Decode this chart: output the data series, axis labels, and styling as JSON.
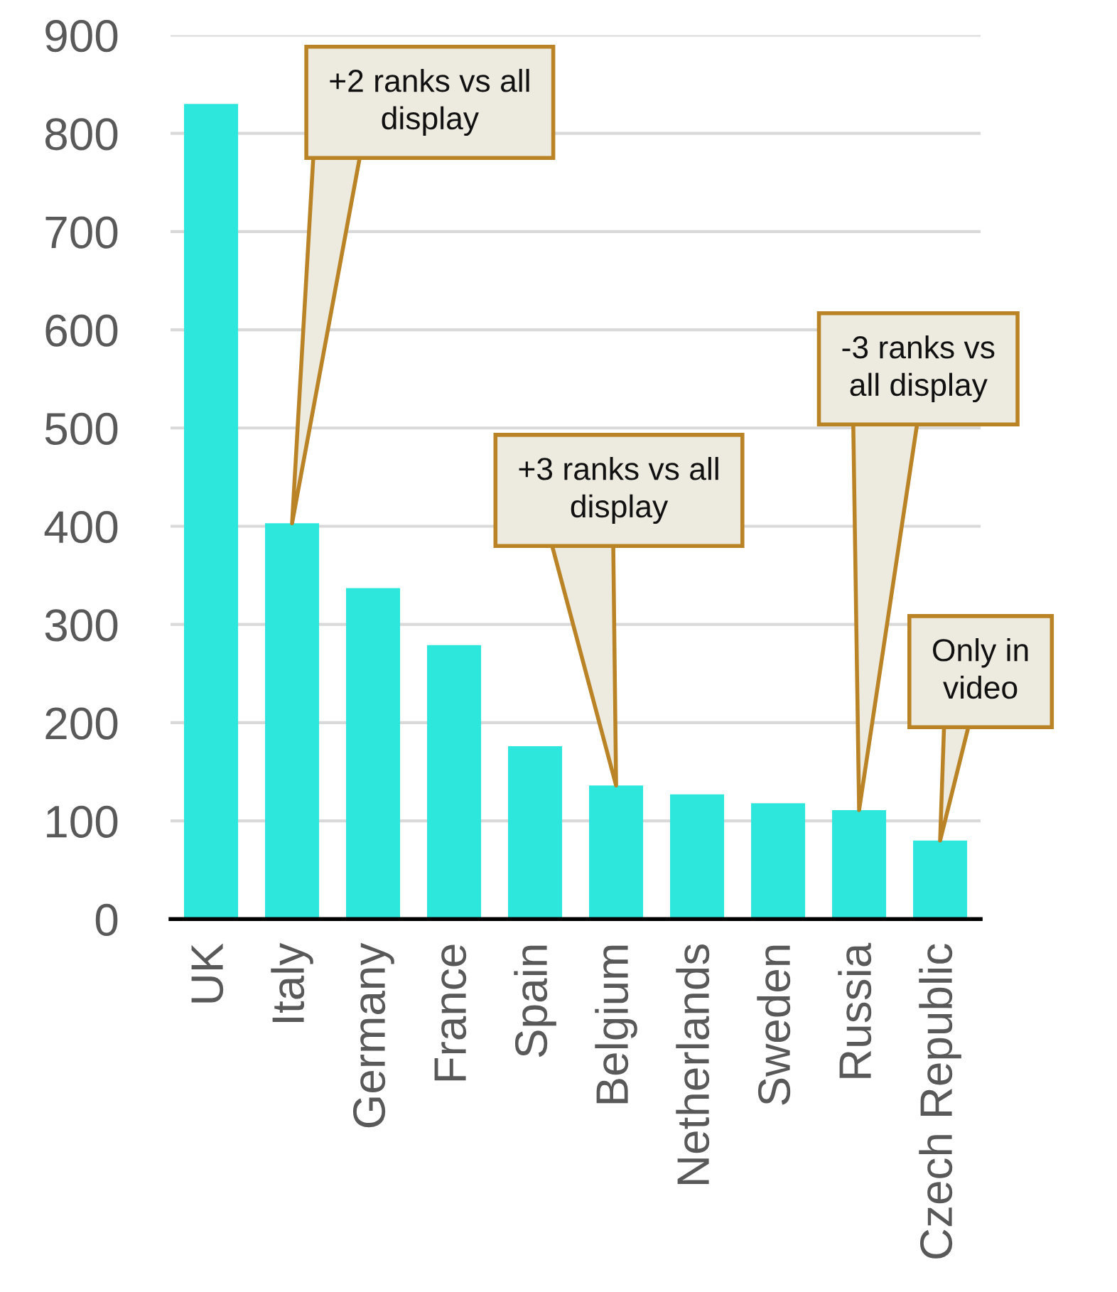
{
  "chart_data": {
    "type": "bar",
    "categories": [
      "UK",
      "Italy",
      "Germany",
      "France",
      "Spain",
      "Belgium",
      "Netherlands",
      "Sweden",
      "Russia",
      "Czech Republic"
    ],
    "values": [
      830,
      403,
      337,
      279,
      176,
      136,
      127,
      118,
      111,
      80
    ],
    "color": "#2de6dc",
    "ylim": [
      0,
      900
    ],
    "yticks": [
      0,
      100,
      200,
      300,
      400,
      500,
      600,
      700,
      800,
      900
    ],
    "grid": "y",
    "annotations": [
      {
        "text": "+2 ranks vs all\ndisplay",
        "x": "Italy",
        "y": 403
      },
      {
        "text": "+3 ranks vs all\ndisplay",
        "x": "Belgium",
        "y": 136
      },
      {
        "text": "-3 ranks vs\nall display",
        "x": "Russia",
        "y": 111
      },
      {
        "text": "Only in\nvideo",
        "x": "Czech Republic",
        "y": 80
      }
    ]
  }
}
